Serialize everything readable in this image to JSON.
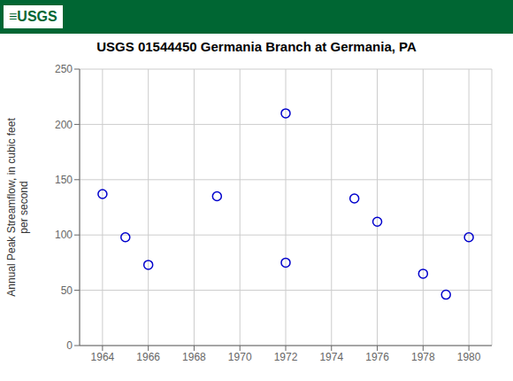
{
  "chart_data": {
    "type": "scatter",
    "title": "USGS 01544450 Germania Branch at Germania, PA",
    "ylabel": "Annual Peak Streamflow, in cubic feet\nper second",
    "annotations": [
      "≡USGS"
    ],
    "x": [
      1964,
      1965,
      1966,
      1969,
      1972,
      1972,
      1975,
      1976,
      1978,
      1979,
      1980
    ],
    "values": [
      137,
      98,
      73,
      135,
      210,
      75,
      133,
      112,
      65,
      46,
      98
    ],
    "xlim": [
      1963,
      1981
    ],
    "ylim": [
      0,
      250
    ],
    "xticks": [
      1964,
      1966,
      1968,
      1970,
      1972,
      1974,
      1976,
      1978,
      1980
    ],
    "yticks": [
      0,
      50,
      100,
      150,
      200,
      250
    ],
    "color": "#0000CC",
    "marker": "circle",
    "grid": true
  }
}
